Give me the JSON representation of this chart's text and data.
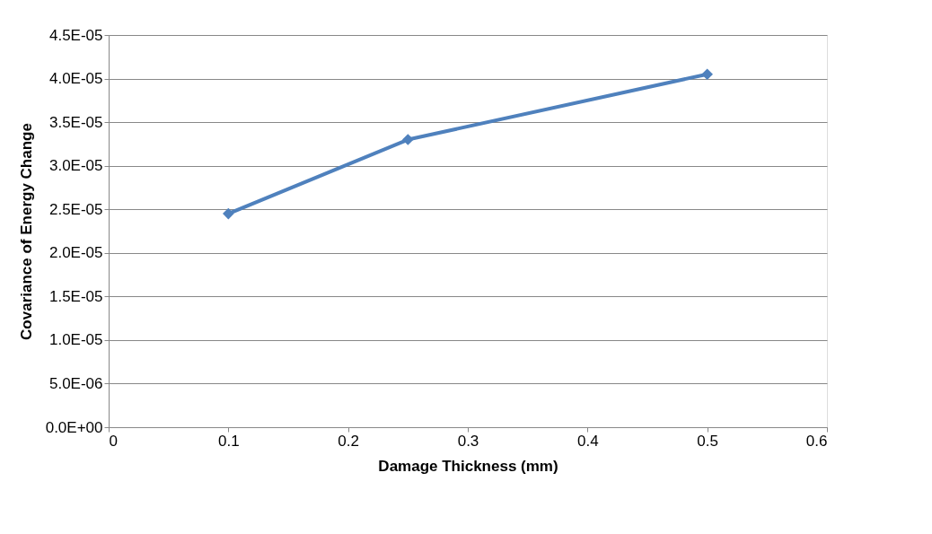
{
  "chart_data": {
    "type": "line",
    "xlabel": "Damage Thickness (mm)",
    "ylabel": "Covariance of Energy Change",
    "x": [
      0.1,
      0.25,
      0.5
    ],
    "series": [
      {
        "color": "#4f81bd",
        "values": [
          2.45e-05,
          3.3e-05,
          4.05e-05
        ]
      }
    ],
    "xlim": [
      0,
      0.6
    ],
    "xticks": [
      0,
      0.1,
      0.2,
      0.3,
      0.4,
      0.5,
      0.6
    ],
    "ylim": [
      0,
      4.5e-05
    ],
    "yticks": [
      {
        "value": 0,
        "label": "0.0E+00"
      },
      {
        "value": 5e-06,
        "label": "5.0E-06"
      },
      {
        "value": 1e-05,
        "label": "1.0E-05"
      },
      {
        "value": 1.5e-05,
        "label": "1.5E-05"
      },
      {
        "value": 2e-05,
        "label": "2.0E-05"
      },
      {
        "value": 2.5e-05,
        "label": "2.5E-05"
      },
      {
        "value": 3e-05,
        "label": "3.0E-05"
      },
      {
        "value": 3.5e-05,
        "label": "3.5E-05"
      },
      {
        "value": 4e-05,
        "label": "4.0E-05"
      },
      {
        "value": 4.5e-05,
        "label": "4.5E-05"
      }
    ],
    "grid": "y",
    "marker": "diamond",
    "line_style": "solid"
  }
}
